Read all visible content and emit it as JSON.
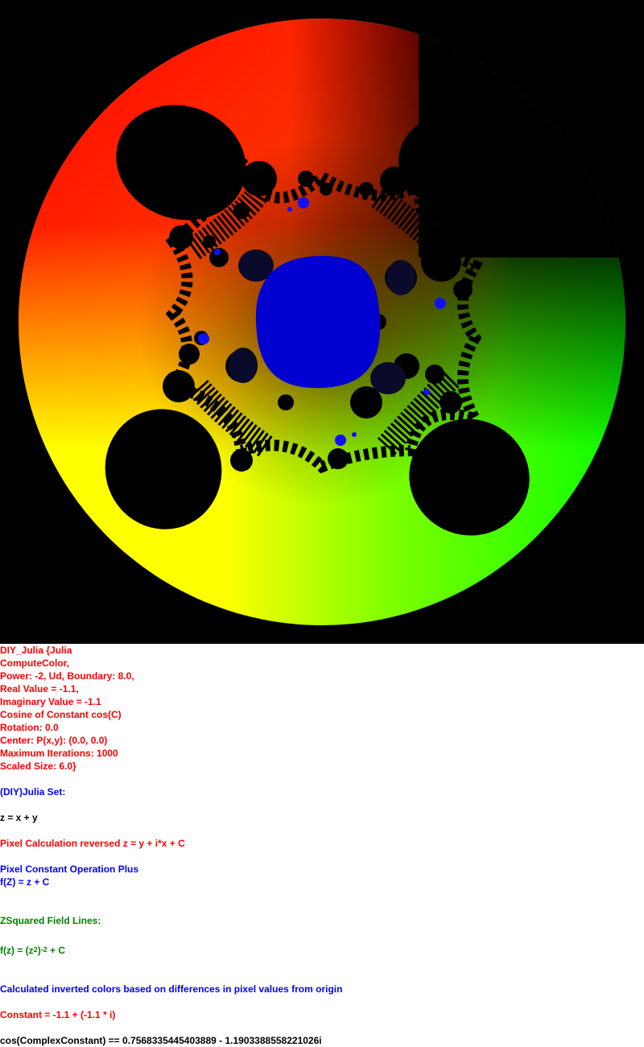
{
  "image": {
    "colors": {
      "background": "#000000",
      "top_left": "#ff0000",
      "bottom_left": "#ffff00",
      "bottom_right": "#00ff00",
      "top_right": "#000000",
      "interior_blue": "#0000d0",
      "bulb_black": "#000000"
    }
  },
  "params": {
    "line1": "DIY_Julia {Julia",
    "line2": "ComputeColor,",
    "line3": "Power: -2, Ud, Boundary: 8.0,",
    "line4": "Real Value = -1.1,",
    "line5": "Imaginary Value = -1.1",
    "line6": "Cosine of Constant cos(C)",
    "line7": "Rotation: 0.0",
    "line8": "Center: P(x,y): (0.0, 0.0)",
    "line9": "Maximum Iterations: 1000",
    "line10": "Scaled Size: 6.0}"
  },
  "set_title": "(DIY)Julia Set:",
  "z_def": "z = x + y",
  "pixel_calc": "Pixel Calculation reversed z = y + i*x + C",
  "constant_op": {
    "title": "Pixel Constant Operation Plus",
    "formula": "f(Z) = z + C"
  },
  "field_lines": {
    "title": "ZSquared Field Lines:",
    "formula_prefix": "f(z) = (z",
    "exp_inner": "2",
    "formula_mid": ")",
    "exp_outer": "-2",
    "formula_suffix": " + C"
  },
  "color_note": "Calculated inverted colors based on differences in pixel values from origin",
  "constant_line": "Constant = -1.1 + (-1.1 * i)",
  "cos_line": "cos(ComplexConstant) == 0.7568335445403889 - 1.1903388558221026i"
}
